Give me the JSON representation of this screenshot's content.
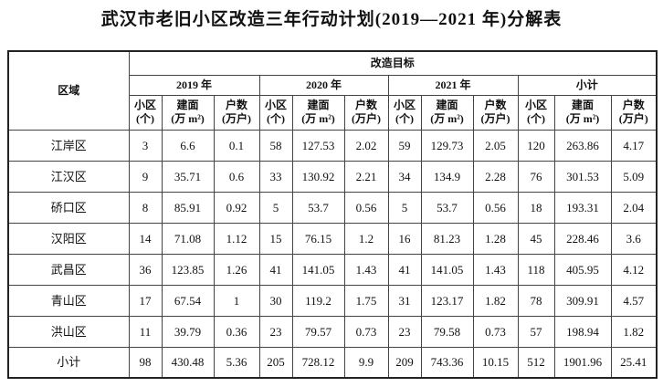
{
  "title": "武汉市老旧小区改造三年行动计划(2019—2021 年)分解表",
  "table": {
    "region_header": "区域",
    "target_header": "改造目标",
    "groups": [
      {
        "name": "2019 年",
        "columns": [
          [
            "小区",
            "(个)"
          ],
          [
            "建面",
            "(万 m²)"
          ],
          [
            "户数",
            "(万户)"
          ]
        ]
      },
      {
        "name": "2020 年",
        "columns": [
          [
            "小区",
            "(个)"
          ],
          [
            "建面",
            "(万 m²)"
          ],
          [
            "户数",
            "(万户)"
          ]
        ]
      },
      {
        "name": "2021 年",
        "columns": [
          [
            "小区",
            "(个)"
          ],
          [
            "建面",
            "(万 m²)"
          ],
          [
            "户数",
            "(万户)"
          ]
        ]
      },
      {
        "name": "小计",
        "columns": [
          [
            "小区",
            "(个)"
          ],
          [
            "建面",
            "(万 m²)"
          ],
          [
            "户数",
            "(万户)"
          ]
        ]
      }
    ],
    "rows": [
      [
        "江岸区",
        3,
        6.6,
        0.1,
        58,
        127.53,
        2.02,
        59,
        129.73,
        2.05,
        120,
        263.86,
        4.17
      ],
      [
        "江汉区",
        9,
        35.71,
        0.6,
        33,
        130.92,
        2.21,
        34,
        134.9,
        2.28,
        76,
        301.53,
        5.09
      ],
      [
        "硚口区",
        8,
        85.91,
        0.92,
        5,
        53.7,
        0.56,
        5,
        53.7,
        0.56,
        18,
        193.31,
        2.04
      ],
      [
        "汉阳区",
        14,
        71.08,
        1.12,
        15,
        76.15,
        1.2,
        16,
        81.23,
        1.28,
        45,
        228.46,
        3.6
      ],
      [
        "武昌区",
        36,
        123.85,
        1.26,
        41,
        141.05,
        1.43,
        41,
        141.05,
        1.43,
        118,
        405.95,
        4.12
      ],
      [
        "青山区",
        17,
        67.54,
        1,
        30,
        119.2,
        1.75,
        31,
        123.17,
        1.82,
        78,
        309.91,
        4.57
      ],
      [
        "洪山区",
        11,
        39.79,
        0.36,
        23,
        79.57,
        0.73,
        23,
        79.58,
        0.73,
        57,
        198.94,
        1.82
      ],
      [
        "小计",
        98,
        430.48,
        5.36,
        205,
        728.12,
        9.9,
        209,
        743.36,
        10.15,
        512,
        1901.96,
        25.41
      ]
    ]
  }
}
